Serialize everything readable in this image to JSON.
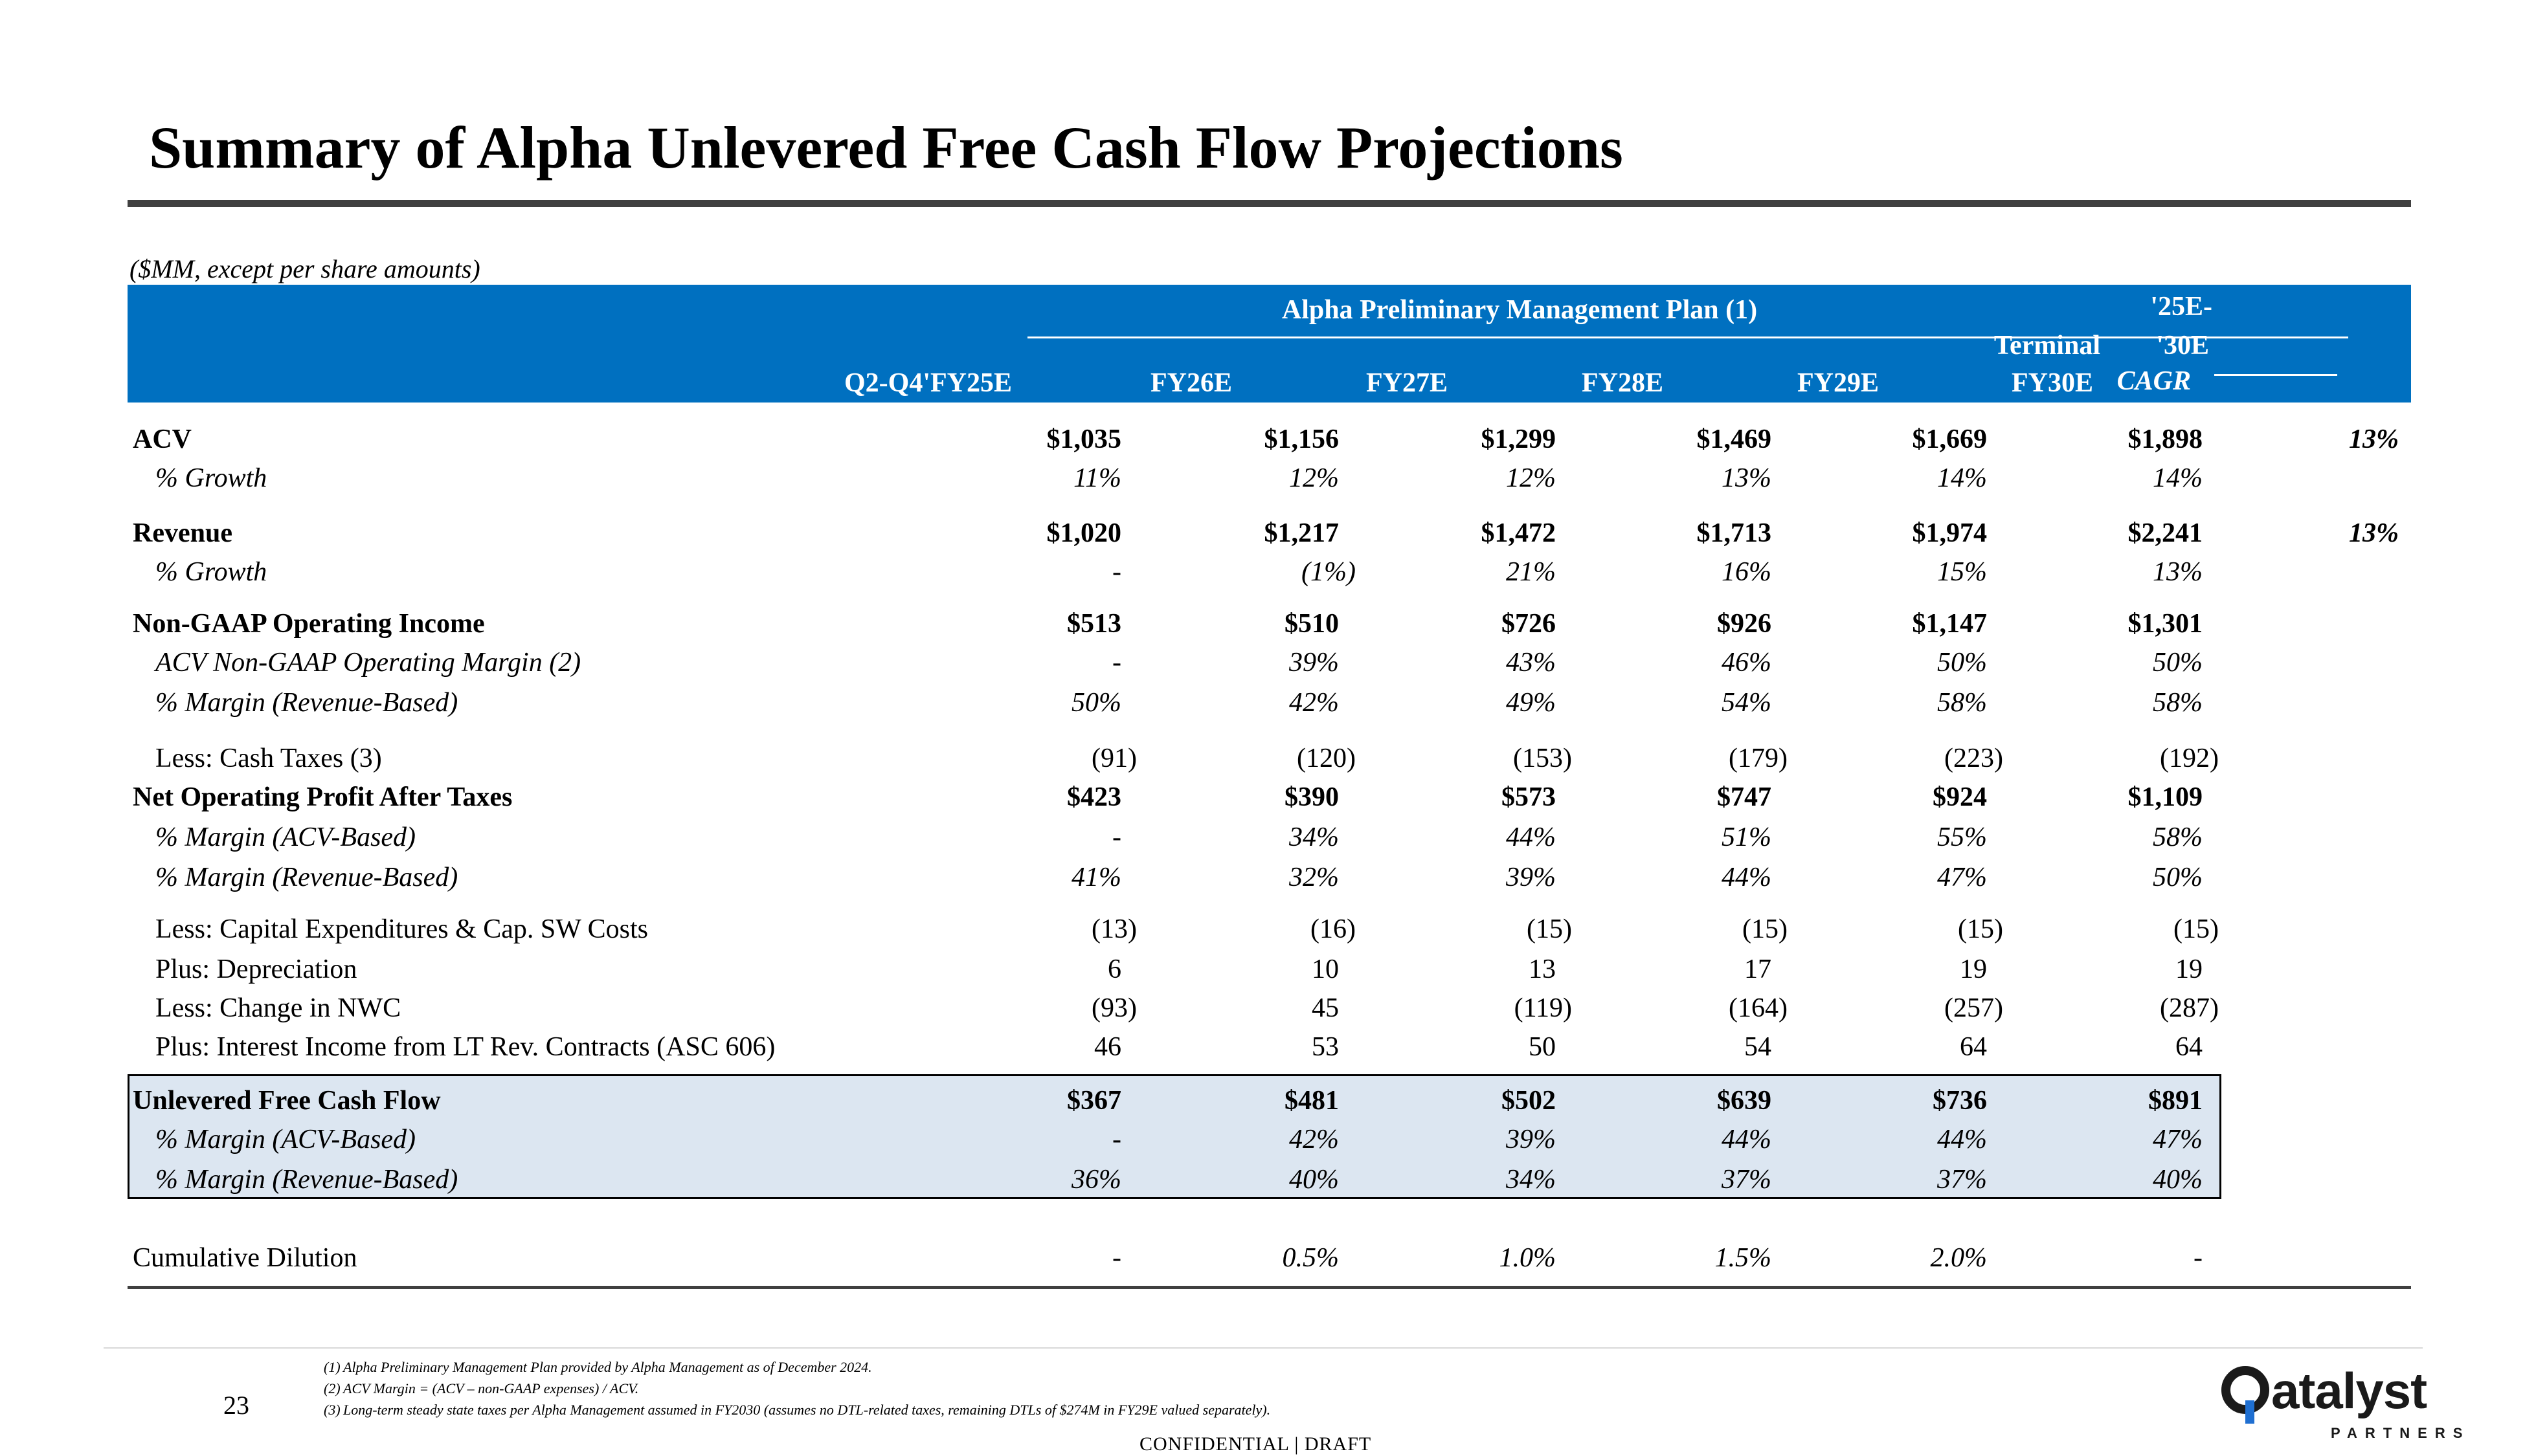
{
  "title": "Summary of Alpha Unlevered Free Cash Flow Projections",
  "units_note": "($MM, except per share amounts)",
  "header": {
    "plan_label": "Alpha Preliminary Management Plan (1)",
    "terminal_label": "Terminal",
    "cagr_line1": "'25E-",
    "cagr_line2": "'30E",
    "cagr_line3": "CAGR",
    "columns": [
      "Q2-Q4'FY25E",
      "FY26E",
      "FY27E",
      "FY28E",
      "FY29E",
      "FY30E"
    ]
  },
  "rows": [
    {
      "label": "ACV",
      "values": [
        "$1,035",
        "$1,156",
        "$1,299",
        "$1,469",
        "$1,669",
        "$1,898"
      ],
      "cagr": "13%"
    },
    {
      "label": "% Growth",
      "values": [
        "11%",
        "12%",
        "12%",
        "13%",
        "14%",
        "14%"
      ],
      "cagr": ""
    },
    {
      "label": "Revenue",
      "values": [
        "$1,020",
        "$1,217",
        "$1,472",
        "$1,713",
        "$1,974",
        "$2,241"
      ],
      "cagr": "13%"
    },
    {
      "label": "% Growth",
      "values": [
        "-",
        "(1%)",
        "21%",
        "16%",
        "15%",
        "13%"
      ],
      "cagr": ""
    },
    {
      "label": "Non-GAAP Operating Income",
      "values": [
        "$513",
        "$510",
        "$726",
        "$926",
        "$1,147",
        "$1,301"
      ],
      "cagr": ""
    },
    {
      "label": "ACV Non-GAAP Operating Margin (2)",
      "values": [
        "-",
        "39%",
        "43%",
        "46%",
        "50%",
        "50%"
      ],
      "cagr": ""
    },
    {
      "label": "% Margin (Revenue-Based)",
      "values": [
        "50%",
        "42%",
        "49%",
        "54%",
        "58%",
        "58%"
      ],
      "cagr": ""
    },
    {
      "label": "Less: Cash Taxes (3)",
      "values": [
        "(91)",
        "(120)",
        "(153)",
        "(179)",
        "(223)",
        "(192)"
      ],
      "cagr": ""
    },
    {
      "label": "Net Operating Profit After Taxes",
      "values": [
        "$423",
        "$390",
        "$573",
        "$747",
        "$924",
        "$1,109"
      ],
      "cagr": ""
    },
    {
      "label": "% Margin (ACV-Based)",
      "values": [
        "-",
        "34%",
        "44%",
        "51%",
        "55%",
        "58%"
      ],
      "cagr": ""
    },
    {
      "label": "% Margin (Revenue-Based)",
      "values": [
        "41%",
        "32%",
        "39%",
        "44%",
        "47%",
        "50%"
      ],
      "cagr": ""
    },
    {
      "label": "Less: Capital Expenditures & Cap. SW Costs",
      "values": [
        "(13)",
        "(16)",
        "(15)",
        "(15)",
        "(15)",
        "(15)"
      ],
      "cagr": ""
    },
    {
      "label": "Plus: Depreciation",
      "values": [
        "6",
        "10",
        "13",
        "17",
        "19",
        "19"
      ],
      "cagr": ""
    },
    {
      "label": "Less: Change in NWC",
      "values": [
        "(93)",
        "45",
        "(119)",
        "(164)",
        "(257)",
        "(287)"
      ],
      "cagr": ""
    },
    {
      "label": "Plus: Interest Income from LT Rev. Contracts (ASC 606)",
      "values": [
        "46",
        "53",
        "50",
        "54",
        "64",
        "64"
      ],
      "cagr": ""
    },
    {
      "label": "Unlevered Free Cash Flow",
      "values": [
        "$367",
        "$481",
        "$502",
        "$639",
        "$736",
        "$891"
      ],
      "cagr": ""
    },
    {
      "label": "% Margin (ACV-Based)",
      "values": [
        "-",
        "42%",
        "39%",
        "44%",
        "44%",
        "47%"
      ],
      "cagr": ""
    },
    {
      "label": "% Margin (Revenue-Based)",
      "values": [
        "36%",
        "40%",
        "34%",
        "37%",
        "37%",
        "40%"
      ],
      "cagr": ""
    },
    {
      "label": "Cumulative Dilution",
      "values": [
        "-",
        "0.5%",
        "1.0%",
        "1.5%",
        "2.0%",
        "-"
      ],
      "cagr": ""
    }
  ],
  "footnotes": [
    {
      "num": "(1)",
      "text": "Alpha Preliminary Management Plan provided by Alpha Management as of December 2024."
    },
    {
      "num": "(2)",
      "text": "ACV Margin = (ACV – non-GAAP expenses) / ACV."
    },
    {
      "num": "(3)",
      "text": "Long-term steady state taxes per Alpha Management assumed in FY2030 (assumes no DTL-related taxes, remaining DTLs of $274M in FY29E valued separately)."
    }
  ],
  "page_number": "23",
  "confidential": "CONFIDENTIAL | DRAFT",
  "logo": {
    "word": "atalyst",
    "sub": "PARTNERS"
  }
}
